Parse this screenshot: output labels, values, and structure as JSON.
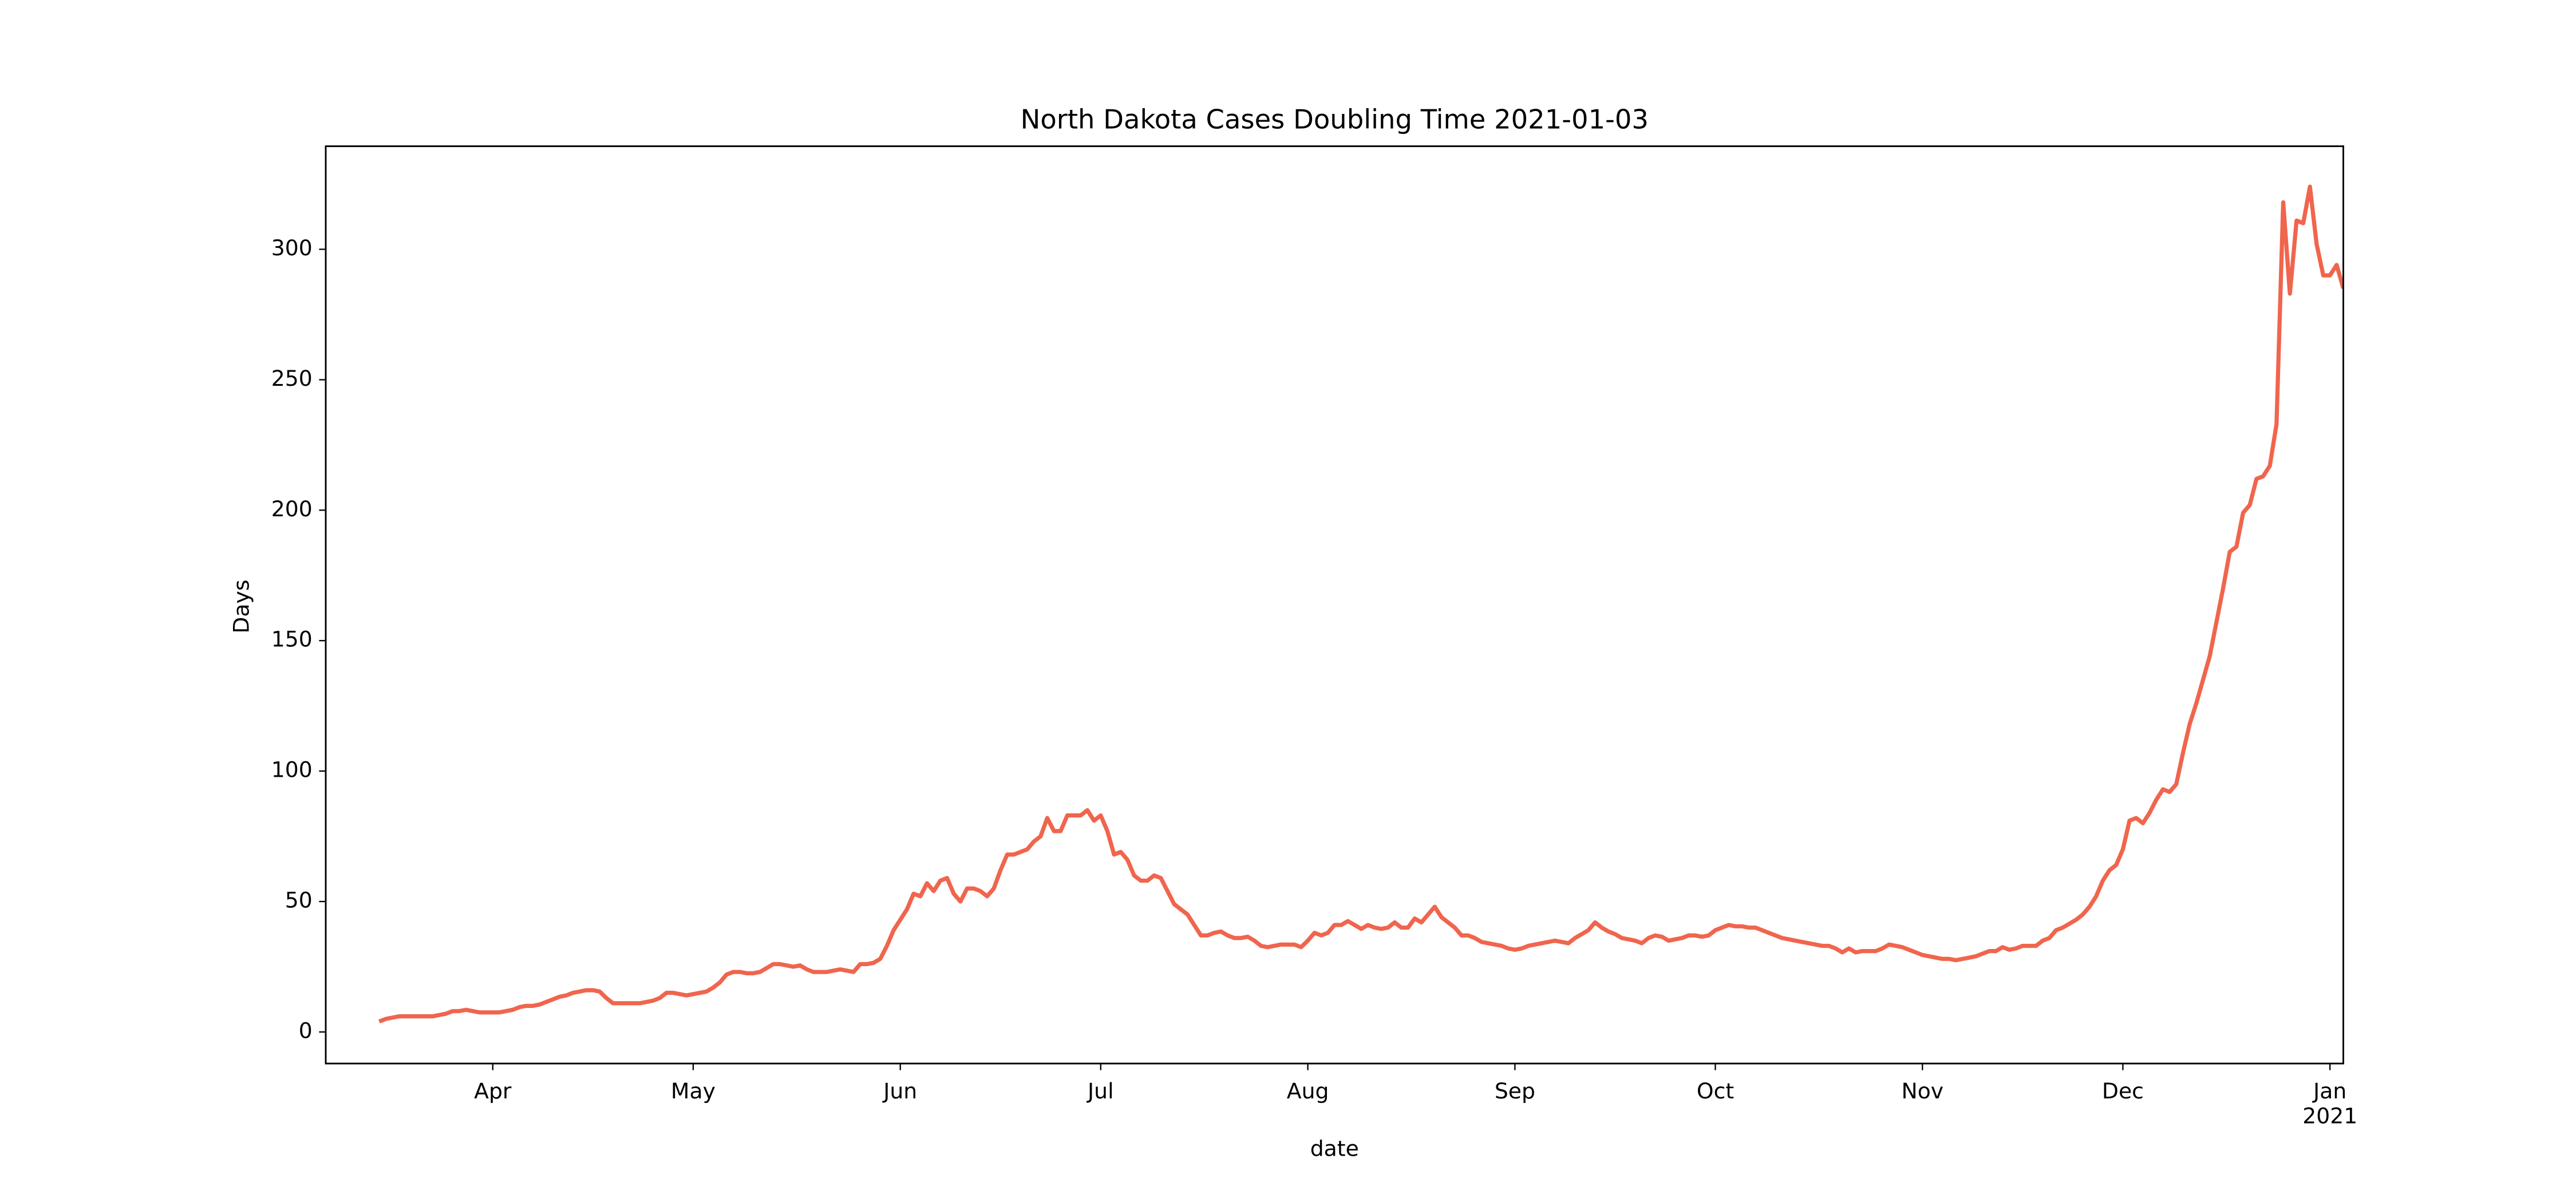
{
  "chart_data": {
    "type": "line",
    "title": "North Dakota Cases Doubling Time 2021-01-03",
    "x_label": "date",
    "y_label": "Days",
    "color": "#f0654d",
    "grid": false,
    "xlim": [
      -8,
      294
    ],
    "xticks": [
      {
        "value": 17,
        "label": "Apr"
      },
      {
        "value": 47,
        "label": "May"
      },
      {
        "value": 78,
        "label": "Jun"
      },
      {
        "value": 108,
        "label": "Jul"
      },
      {
        "value": 139,
        "label": "Aug"
      },
      {
        "value": 170,
        "label": "Sep"
      },
      {
        "value": 200,
        "label": "Oct"
      },
      {
        "value": 231,
        "label": "Nov"
      },
      {
        "value": 261,
        "label": "Dec"
      },
      {
        "value": 292,
        "label": "Jan\n2021"
      }
    ],
    "ylim": [
      -12.1,
      339.5
    ],
    "yticks": [
      0,
      50,
      100,
      150,
      200,
      250,
      300
    ],
    "values": [
      4,
      5,
      5.5,
      6,
      6,
      6,
      6,
      6,
      6,
      6.5,
      7,
      8,
      8,
      8.5,
      8,
      7.5,
      7.5,
      7.5,
      7.5,
      8,
      8.5,
      9.5,
      10,
      10,
      10.5,
      11.5,
      12.5,
      13.5,
      14,
      15,
      15.5,
      16,
      16,
      15.5,
      13,
      11,
      11,
      11,
      11,
      11,
      11.5,
      12,
      13,
      15,
      15,
      14.5,
      14,
      14.5,
      15,
      15.5,
      17,
      19,
      22,
      23,
      23,
      22.5,
      22.5,
      23,
      24.5,
      26,
      26,
      25.5,
      25,
      25.5,
      24,
      23,
      23,
      23,
      23.5,
      24,
      23.5,
      23,
      26,
      26,
      26.5,
      28,
      33,
      39,
      43,
      47,
      53,
      52,
      57,
      54,
      58,
      59,
      53,
      50,
      55,
      55,
      54,
      52,
      55,
      62,
      68,
      68,
      69,
      70,
      73,
      75,
      82,
      77,
      77,
      83,
      83,
      83,
      85,
      81,
      83,
      77,
      68,
      69,
      66,
      60,
      58,
      58,
      60,
      59,
      54,
      49,
      47,
      45,
      41,
      37,
      37,
      38,
      38.5,
      37,
      36,
      36,
      36.5,
      35,
      33,
      32.5,
      33,
      33.5,
      33.5,
      33.5,
      32.5,
      35,
      38,
      37,
      38,
      41,
      41,
      42.5,
      41,
      39.5,
      41,
      40,
      39.5,
      40,
      42,
      40,
      40,
      43.5,
      42,
      45,
      48,
      44,
      42,
      40,
      37,
      37,
      36,
      34.5,
      34,
      33.5,
      33,
      32,
      31.5,
      32,
      33,
      33.5,
      34,
      34.5,
      35,
      34.5,
      34,
      36,
      37.5,
      39,
      42,
      40,
      38.5,
      37.5,
      36,
      35.5,
      35,
      34,
      36,
      37,
      36.5,
      35,
      35.5,
      36,
      37,
      37,
      36.5,
      37,
      39,
      40,
      41,
      40.5,
      40.5,
      40,
      40,
      39,
      38,
      37,
      36,
      35.5,
      35,
      34.5,
      34,
      33.5,
      33,
      33,
      32,
      30.5,
      32,
      30.5,
      31,
      31,
      31,
      32,
      33.5,
      33,
      32.5,
      31.5,
      30.5,
      29.5,
      29,
      28.5,
      28,
      28,
      27.5,
      28,
      28.5,
      29,
      30,
      31,
      31,
      32.5,
      31.5,
      32,
      33,
      33,
      33,
      35,
      36,
      39,
      40,
      41.5,
      43,
      45,
      48,
      52,
      58,
      62,
      64,
      70,
      81,
      82,
      80,
      84,
      89,
      93,
      92,
      95,
      107,
      118,
      126,
      135,
      144,
      157,
      170,
      184,
      186,
      199,
      202,
      212,
      213,
      217,
      233,
      318,
      283,
      311,
      310,
      324,
      302,
      290,
      290,
      294,
      285
    ]
  }
}
